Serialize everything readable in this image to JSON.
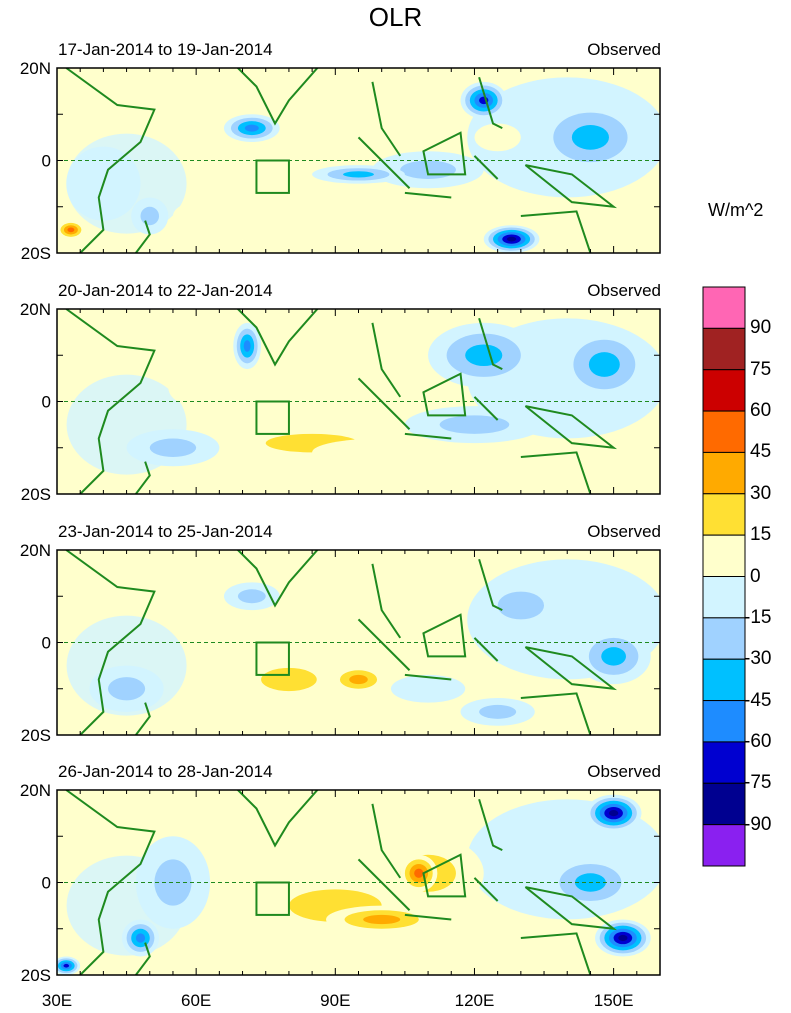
{
  "title": "OLR",
  "units": "W/m^2",
  "chart_data": {
    "type": "heatmap",
    "title": "OLR",
    "lon_range": [
      30,
      160
    ],
    "lat_range": [
      -20,
      20
    ],
    "x_ticks": [
      "30E",
      "60E",
      "90E",
      "120E",
      "150E"
    ],
    "y_ticks": [
      "20N",
      "0",
      "20S"
    ],
    "colorbar": {
      "levels": [
        "90",
        "75",
        "60",
        "45",
        "30",
        "15",
        "0",
        "-15",
        "-30",
        "-45",
        "-60",
        "-75",
        "-90"
      ],
      "colors": [
        "#ff66b4",
        "#a02222",
        "#cc0000",
        "#ff6a00",
        "#ffaa00",
        "#ffe033",
        "#ffffcc",
        "#d2f4ff",
        "#a0d2ff",
        "#00c0ff",
        "#1e8cff",
        "#0000d0",
        "#000090",
        "#8a20f0"
      ]
    },
    "box": {
      "lon": [
        73,
        80
      ],
      "lat": [
        -7,
        0
      ]
    },
    "panels": [
      {
        "label": "17-Jan-2014 to 19-Jan-2014",
        "tag": "Observed",
        "features": [
          [
            72,
            7,
            6,
            3,
            -70
          ],
          [
            122,
            13,
            5,
            4,
            -75
          ],
          [
            128,
            -17,
            6,
            3,
            -95
          ],
          [
            145,
            5,
            12,
            8,
            -45
          ],
          [
            110,
            -2,
            12,
            4,
            -40
          ],
          [
            95,
            -3,
            10,
            2,
            -50
          ],
          [
            80,
            -10,
            14,
            5,
            25
          ],
          [
            65,
            -12,
            10,
            4,
            20
          ],
          [
            33,
            -15,
            3,
            2,
            60
          ],
          [
            50,
            -12,
            4,
            4,
            -40
          ],
          [
            125,
            5,
            5,
            3,
            20
          ],
          [
            40,
            -5,
            8,
            8,
            -20
          ]
        ]
      },
      {
        "label": "20-Jan-2014 to 22-Jan-2014",
        "tag": "Observed",
        "features": [
          [
            71,
            12,
            3,
            5,
            -70
          ],
          [
            122,
            10,
            12,
            7,
            -50
          ],
          [
            148,
            8,
            10,
            8,
            -45
          ],
          [
            120,
            -5,
            15,
            4,
            -40
          ],
          [
            85,
            -9,
            20,
            4,
            30
          ],
          [
            100,
            -11,
            15,
            3,
            25
          ],
          [
            55,
            -10,
            10,
            4,
            -35
          ],
          [
            150,
            -14,
            6,
            3,
            20
          ],
          [
            60,
            3,
            6,
            4,
            20
          ]
        ]
      },
      {
        "label": "23-Jan-2014 to 25-Jan-2014",
        "tag": "Observed",
        "features": [
          [
            90,
            0,
            20,
            10,
            25
          ],
          [
            80,
            -8,
            12,
            5,
            35
          ],
          [
            95,
            -8,
            6,
            3,
            45
          ],
          [
            130,
            8,
            10,
            6,
            -40
          ],
          [
            150,
            -3,
            8,
            6,
            -55
          ],
          [
            72,
            10,
            6,
            3,
            -30
          ],
          [
            125,
            -15,
            8,
            3,
            -35
          ],
          [
            45,
            -10,
            8,
            5,
            -30
          ],
          [
            110,
            -10,
            8,
            3,
            -20
          ]
        ]
      },
      {
        "label": "26-Jan-2014 to 28-Jan-2014",
        "tag": "Observed",
        "features": [
          [
            110,
            2,
            12,
            8,
            40
          ],
          [
            108,
            2,
            4,
            4,
            70
          ],
          [
            90,
            -5,
            20,
            7,
            35
          ],
          [
            100,
            -8,
            12,
            3,
            45
          ],
          [
            150,
            15,
            6,
            4,
            -95
          ],
          [
            152,
            -12,
            6,
            4,
            -90
          ],
          [
            145,
            0,
            10,
            6,
            -45
          ],
          [
            55,
            0,
            8,
            10,
            -35
          ],
          [
            48,
            -12,
            4,
            4,
            -70
          ],
          [
            32,
            -18,
            3,
            2,
            -80
          ],
          [
            80,
            10,
            8,
            5,
            20
          ]
        ]
      }
    ]
  }
}
